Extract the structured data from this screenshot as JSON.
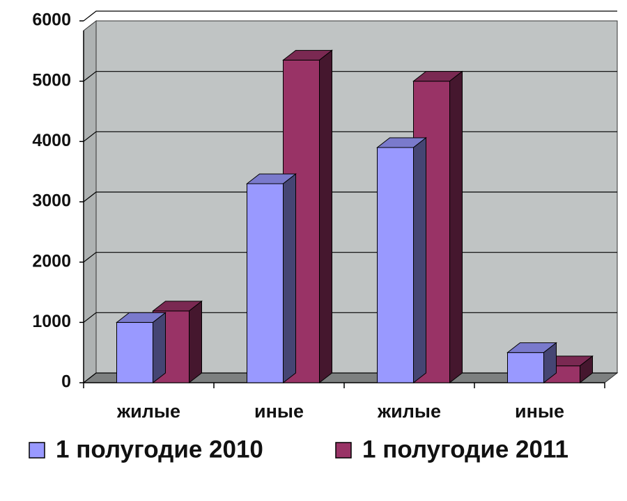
{
  "chart_data": {
    "type": "bar3d",
    "categories": [
      "жилые",
      "иные",
      "жилые",
      "иные"
    ],
    "series": [
      {
        "name": "1 полугодие 2010",
        "color": "#9999ff",
        "values": [
          1000,
          3300,
          3900,
          500
        ]
      },
      {
        "name": "1 полугодие 2011",
        "color": "#993366",
        "values": [
          1190,
          5350,
          5000,
          280
        ]
      }
    ],
    "ylim": [
      0,
      6000
    ],
    "yticks": [
      0,
      1000,
      2000,
      3000,
      4000,
      5000,
      6000
    ],
    "grid": true,
    "legend": "bottom"
  }
}
